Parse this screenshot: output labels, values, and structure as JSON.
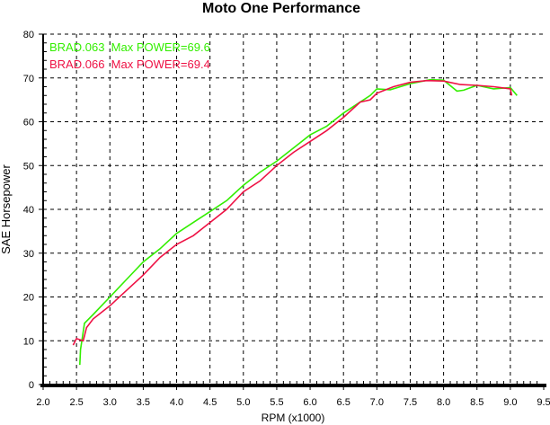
{
  "chart_data": {
    "type": "line",
    "title": "Moto One Performance",
    "xlabel": "RPM (x1000)",
    "ylabel": "SAE Horsepower",
    "xlim": [
      2.0,
      9.5
    ],
    "ylim": [
      0,
      80
    ],
    "xticks": [
      "2.0",
      "2.5",
      "3.0",
      "3.5",
      "4.0",
      "4.5",
      "5.0",
      "5.5",
      "6.0",
      "6.5",
      "7.0",
      "7.5",
      "8.0",
      "8.5",
      "9.0",
      "9.5"
    ],
    "yticks": [
      "0",
      "10",
      "20",
      "30",
      "40",
      "50",
      "60",
      "70",
      "80"
    ],
    "grid": true,
    "legend_placement": "top-left",
    "series": [
      {
        "name": "BRAD.063",
        "legend": "BRAD.063  Max POWER=69.6",
        "color": "#33ee00",
        "x": [
          2.55,
          2.56,
          2.58,
          2.62,
          2.75,
          3.0,
          3.25,
          3.5,
          3.75,
          4.0,
          4.25,
          4.5,
          4.75,
          5.0,
          5.25,
          5.5,
          5.75,
          6.0,
          6.25,
          6.5,
          6.75,
          6.9,
          7.0,
          7.2,
          7.5,
          7.8,
          8.0,
          8.2,
          8.3,
          8.5,
          8.75,
          9.0,
          9.1
        ],
        "y": [
          4.5,
          8,
          10,
          14,
          16,
          20,
          24,
          28,
          31,
          34.5,
          37,
          39.5,
          42,
          45.5,
          48.5,
          51,
          54,
          57,
          59,
          62,
          64.5,
          66,
          67.5,
          67.3,
          68.7,
          69.6,
          69.5,
          67,
          67.2,
          68.3,
          67.5,
          67.8,
          66
        ]
      },
      {
        "name": "BRAD.066",
        "legend": "BRAD.066  Max POWER=69.4",
        "color": "#ee1144",
        "x": [
          2.45,
          2.5,
          2.6,
          2.65,
          2.75,
          3.0,
          3.25,
          3.5,
          3.75,
          4.0,
          4.25,
          4.5,
          4.75,
          5.0,
          5.25,
          5.5,
          5.75,
          6.0,
          6.25,
          6.5,
          6.75,
          6.9,
          7.0,
          7.25,
          7.5,
          7.75,
          8.0,
          8.25,
          8.5,
          8.75,
          9.0,
          9.02
        ],
        "y": [
          9,
          10.5,
          10,
          13,
          15,
          18,
          21.5,
          25,
          29,
          32,
          34,
          37,
          40,
          44,
          46.5,
          50,
          53,
          55.5,
          58,
          61,
          64.5,
          65,
          66.5,
          68,
          69,
          69.4,
          69.3,
          68.5,
          68.3,
          68,
          67.5,
          66
        ]
      }
    ]
  }
}
